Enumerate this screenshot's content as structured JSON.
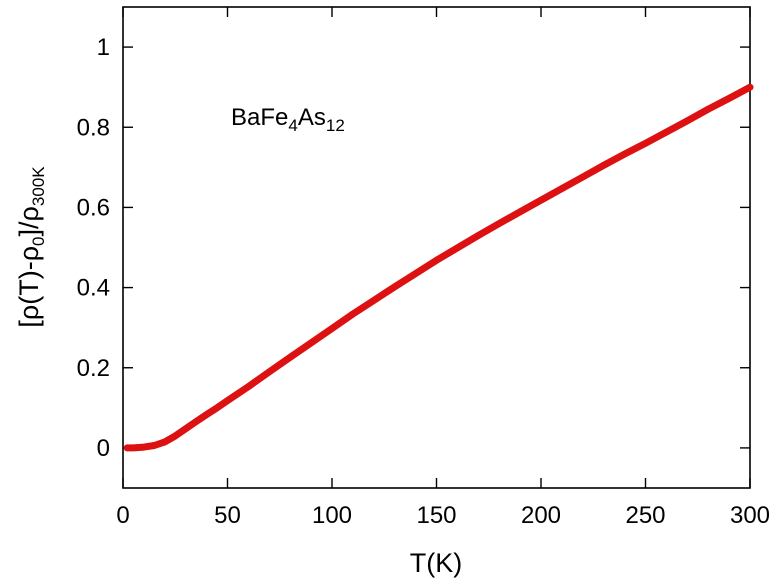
{
  "chart_data": {
    "type": "line",
    "title": "",
    "xlabel": "T(K)",
    "ylabel": {
      "main": "[ρ(T)-ρ",
      "sub0": "0",
      "mid": "]/ρ",
      "sub1": "300K"
    },
    "annotation": {
      "main1": "BaFe",
      "sub1": "4",
      "main2": "As",
      "sub2": "12"
    },
    "xlim": [
      0,
      300
    ],
    "ylim": [
      -0.1,
      1.1
    ],
    "xticks": [
      0,
      50,
      100,
      150,
      200,
      250,
      300
    ],
    "xtick_labels": [
      "0",
      "50",
      "100",
      "150",
      "200",
      "250",
      "300"
    ],
    "yticks": [
      0,
      0.2,
      0.4,
      0.6,
      0.8,
      1
    ],
    "ytick_labels": [
      "0",
      "0.2",
      "0.4",
      "0.6",
      "0.8",
      "1"
    ],
    "grid": false,
    "legend": "none",
    "series": [
      {
        "color": "#dd1111",
        "x": [
          2,
          5,
          10,
          15,
          20,
          25,
          30,
          35,
          40,
          45,
          50,
          60,
          70,
          80,
          90,
          100,
          110,
          120,
          130,
          140,
          150,
          160,
          170,
          180,
          190,
          200,
          210,
          220,
          230,
          240,
          250,
          260,
          270,
          280,
          290,
          300
        ],
        "y": [
          0.0,
          0.0,
          0.002,
          0.006,
          0.015,
          0.03,
          0.048,
          0.066,
          0.083,
          0.1,
          0.118,
          0.153,
          0.19,
          0.226,
          0.262,
          0.298,
          0.334,
          0.368,
          0.402,
          0.435,
          0.468,
          0.499,
          0.53,
          0.56,
          0.589,
          0.618,
          0.647,
          0.676,
          0.705,
          0.733,
          0.76,
          0.788,
          0.816,
          0.845,
          0.872,
          0.9
        ]
      }
    ]
  }
}
